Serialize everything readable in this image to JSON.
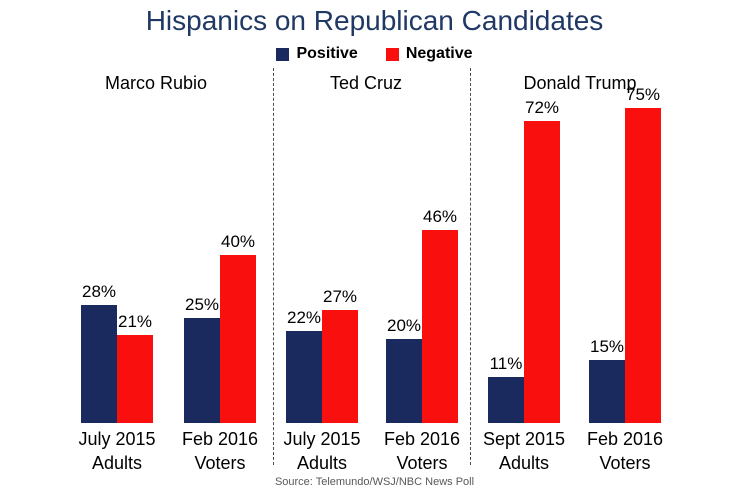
{
  "colors": {
    "title_text": "#1f3864",
    "positive": "#1b2a5e",
    "negative": "#fa0f0f",
    "label_text": "#000000",
    "source_text": "#595959",
    "divider": "#4d4d4d",
    "background": "#ffffff"
  },
  "chart_data": {
    "type": "bar",
    "title": "Hispanics on Republican Candidates",
    "unit": "%",
    "ylim": [
      0,
      100
    ],
    "grid": false,
    "legend_position": "top-center",
    "legend": [
      {
        "label": "Positive",
        "color": "#1b2a5e"
      },
      {
        "label": "Negative",
        "color": "#fa0f0f"
      }
    ],
    "panels": [
      {
        "candidate": "Marco Rubio",
        "groups": [
          {
            "label_lines": [
              "July 2015",
              "Adults"
            ],
            "Positive": 28,
            "Negative": 21
          },
          {
            "label_lines": [
              "Feb 2016",
              "Voters"
            ],
            "Positive": 25,
            "Negative": 40
          }
        ]
      },
      {
        "candidate": "Ted Cruz",
        "groups": [
          {
            "label_lines": [
              "July 2015",
              "Adults"
            ],
            "Positive": 22,
            "Negative": 27
          },
          {
            "label_lines": [
              "Feb 2016",
              "Voters"
            ],
            "Positive": 20,
            "Negative": 46
          }
        ]
      },
      {
        "candidate": "Donald Trump",
        "groups": [
          {
            "label_lines": [
              "Sept 2015",
              "Adults"
            ],
            "Positive": 11,
            "Negative": 72
          },
          {
            "label_lines": [
              "Feb 2016",
              "Voters"
            ],
            "Positive": 15,
            "Negative": 75
          }
        ]
      }
    ],
    "source": "Source: Telemundo/WSJ/NBC News Poll"
  }
}
